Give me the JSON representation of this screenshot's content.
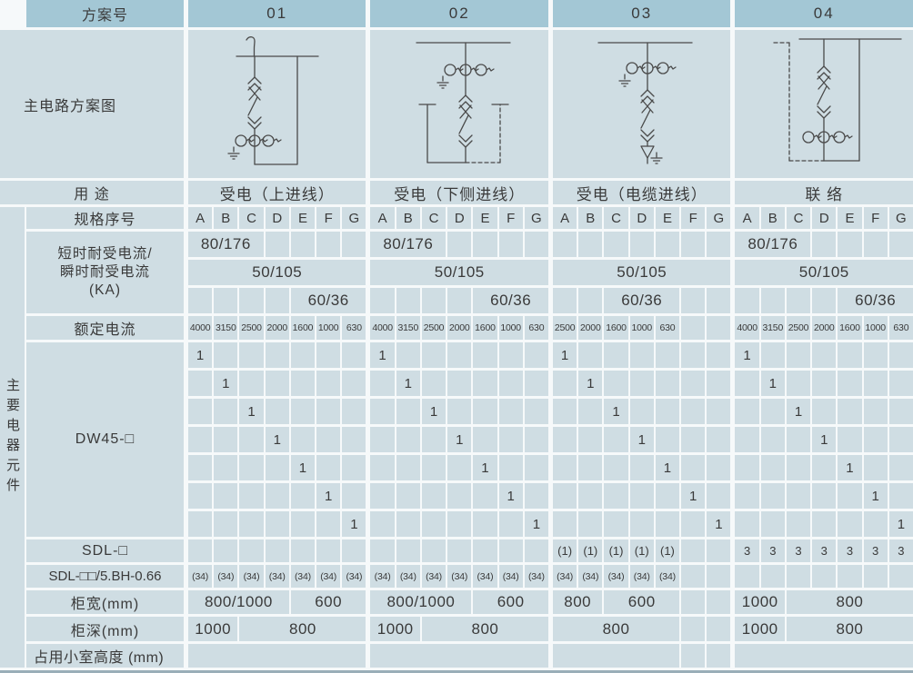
{
  "colors": {
    "header_bg": "#a3c7d5",
    "cell_bg": "#cfdde3",
    "text": "#3a3a3a",
    "bottom_strip": "#9aaeb8"
  },
  "header": {
    "scheme_no_label": "方案号",
    "schemes": [
      "01",
      "02",
      "03",
      "04"
    ]
  },
  "diagram_row": {
    "label": "主电路方案图"
  },
  "usage_row": {
    "label": "用 途",
    "usages": [
      "受电（上进线）",
      "受电（下侧进线）",
      "受电（电缆进线）",
      "联  络"
    ]
  },
  "side_label": "主要电器元件",
  "body": {
    "spec": {
      "label": "规格序号",
      "letters": [
        "A",
        "B",
        "C",
        "D",
        "E",
        "F",
        "G"
      ]
    },
    "withstand": {
      "label_lines": [
        "短时耐受电流/",
        "瞬时耐受电流",
        "(KA)"
      ],
      "rows": [
        {
          "groups": [
            [
              [
                "80/176",
                3
              ],
              [
                "",
                1
              ],
              [
                "",
                1
              ],
              [
                "",
                1
              ],
              [
                "",
                1
              ]
            ],
            [
              [
                "80/176",
                3
              ],
              [
                "",
                1
              ],
              [
                "",
                1
              ],
              [
                "",
                1
              ],
              [
                "",
                1
              ]
            ],
            [
              [
                "",
                1
              ],
              [
                "",
                1
              ],
              [
                "",
                1
              ],
              [
                "",
                1
              ],
              [
                "",
                1
              ],
              [
                "",
                1
              ],
              [
                "",
                1
              ]
            ],
            [
              [
                "80/176",
                3
              ],
              [
                "",
                1
              ],
              [
                "",
                1
              ],
              [
                "",
                1
              ],
              [
                "",
                1
              ]
            ]
          ]
        },
        {
          "groups": [
            [
              [
                "50/105",
                7
              ]
            ],
            [
              [
                "50/105",
                7
              ]
            ],
            [
              [
                "50/105",
                7
              ]
            ],
            [
              [
                "50/105",
                7
              ]
            ]
          ]
        },
        {
          "groups": [
            [
              [
                "",
                1
              ],
              [
                "",
                1
              ],
              [
                "",
                1
              ],
              [
                "",
                1
              ],
              [
                "60/36",
                3
              ]
            ],
            [
              [
                "",
                1
              ],
              [
                "",
                1
              ],
              [
                "",
                1
              ],
              [
                "",
                1
              ],
              [
                "60/36",
                3
              ]
            ],
            [
              [
                "",
                1
              ],
              [
                "",
                1
              ],
              [
                "60/36",
                3
              ],
              [
                "",
                1
              ],
              [
                "",
                1
              ]
            ],
            [
              [
                "",
                1
              ],
              [
                "",
                1
              ],
              [
                "",
                1
              ],
              [
                "",
                1
              ],
              [
                "60/36",
                3
              ]
            ]
          ]
        }
      ]
    },
    "rated": {
      "label": "额定电流",
      "groups": [
        [
          "4000",
          "3150",
          "2500",
          "2000",
          "1600",
          "1000",
          "630"
        ],
        [
          "4000",
          "3150",
          "2500",
          "2000",
          "1600",
          "1000",
          "630"
        ],
        [
          "2500",
          "2000",
          "1600",
          "1000",
          "630",
          "",
          ""
        ],
        [
          "4000",
          "3150",
          "2500",
          "2000",
          "1600",
          "1000",
          "630"
        ]
      ]
    },
    "dw45": {
      "label": "DW45-□",
      "matrix": [
        [
          "1",
          "",
          "",
          "",
          "",
          "",
          ""
        ],
        [
          "",
          "1",
          "",
          "",
          "",
          "",
          ""
        ],
        [
          "",
          "",
          "1",
          "",
          "",
          "",
          ""
        ],
        [
          "",
          "",
          "",
          "1",
          "",
          "",
          ""
        ],
        [
          "",
          "",
          "",
          "",
          "1",
          "",
          ""
        ],
        [
          "",
          "",
          "",
          "",
          "",
          "1",
          ""
        ],
        [
          "",
          "",
          "",
          "",
          "",
          "",
          "1"
        ]
      ]
    },
    "sdl": {
      "label": "SDL-□",
      "groups": [
        [
          "",
          "",
          "",
          "",
          "",
          "",
          ""
        ],
        [
          "",
          "",
          "",
          "",
          "",
          "",
          ""
        ],
        [
          "(1)",
          "(1)",
          "(1)",
          "(1)",
          "(1)",
          "",
          ""
        ],
        [
          "3",
          "3",
          "3",
          "3",
          "3",
          "3",
          "3"
        ]
      ]
    },
    "sdl2": {
      "label": "SDL-□□/5.BH-0.66",
      "groups": [
        [
          "(34)",
          "(34)",
          "(34)",
          "(34)",
          "(34)",
          "(34)",
          "(34)"
        ],
        [
          "(34)",
          "(34)",
          "(34)",
          "(34)",
          "(34)",
          "(34)",
          "(34)"
        ],
        [
          "(34)",
          "(34)",
          "(34)",
          "(34)",
          "(34)",
          "",
          ""
        ],
        [
          "",
          "",
          "",
          "",
          "",
          "",
          ""
        ]
      ]
    },
    "width": {
      "label": "柜宽(mm)",
      "groups": [
        [
          [
            "800/1000",
            4
          ],
          [
            "600",
            3
          ]
        ],
        [
          [
            "800/1000",
            4
          ],
          [
            "600",
            3
          ]
        ],
        [
          [
            "800",
            2
          ],
          [
            "600",
            3
          ],
          [
            "",
            1
          ],
          [
            "",
            1
          ]
        ],
        [
          [
            "1000",
            2
          ],
          [
            "800",
            5
          ]
        ]
      ]
    },
    "depth": {
      "label": "柜深(mm)",
      "groups": [
        [
          [
            "1000",
            2
          ],
          [
            "800",
            5
          ]
        ],
        [
          [
            "1000",
            2
          ],
          [
            "800",
            5
          ]
        ],
        [
          [
            "800",
            5
          ],
          [
            "",
            1
          ],
          [
            "",
            1
          ]
        ],
        [
          [
            "1000",
            2
          ],
          [
            "800",
            5
          ]
        ]
      ]
    },
    "height": {
      "label": "占用小室高度 (mm)",
      "groups": [
        [
          [
            "",
            7
          ]
        ],
        [
          [
            "",
            7
          ]
        ],
        [
          [
            "",
            5
          ],
          [
            "",
            1
          ],
          [
            "",
            1
          ]
        ],
        [
          [
            "",
            7
          ]
        ]
      ]
    }
  }
}
